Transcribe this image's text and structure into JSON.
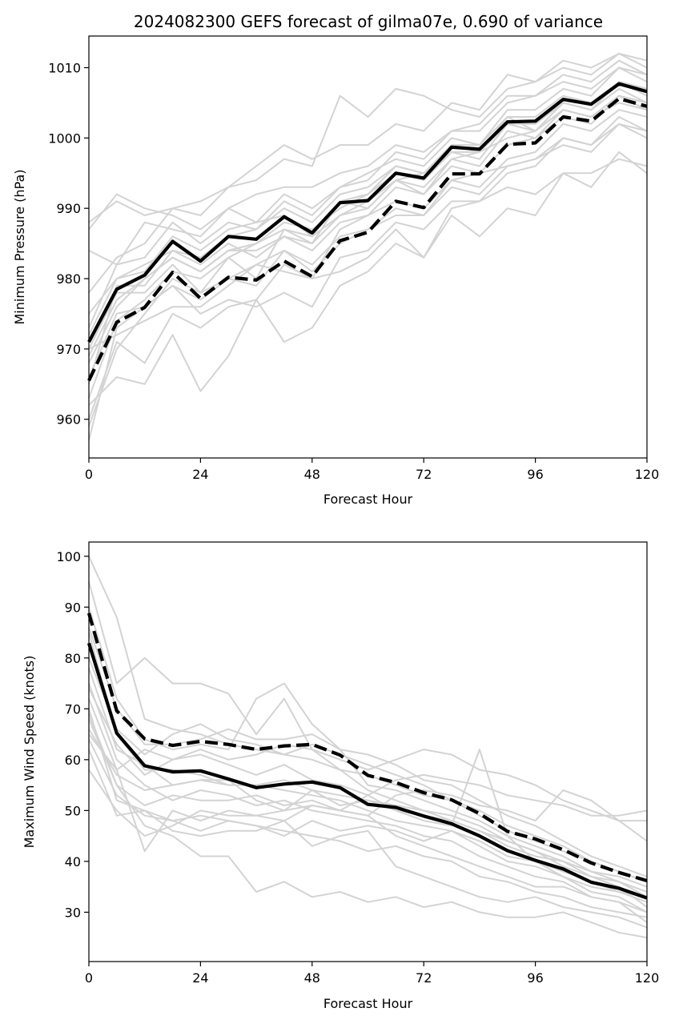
{
  "title": "2024082300 GEFS forecast of gilma07e, 0.690 of variance",
  "chart_data": [
    {
      "type": "line",
      "title": "2024082300 GEFS forecast of gilma07e, 0.690 of variance",
      "xlabel": "Forecast Hour",
      "ylabel": "Minimum Pressure (hPa)",
      "xlim": [
        0,
        120
      ],
      "ylim": [
        954.5,
        1014.5
      ],
      "xticks": [
        0,
        24,
        48,
        72,
        96,
        120
      ],
      "yticks": [
        960,
        970,
        980,
        990,
        1000,
        1010
      ],
      "x": [
        0,
        6,
        12,
        18,
        24,
        30,
        36,
        42,
        48,
        54,
        60,
        66,
        72,
        78,
        84,
        90,
        96,
        102,
        108,
        114,
        120
      ],
      "grid": false,
      "series": [
        {
          "style": "solid-black",
          "values": [
            971.0,
            978.5,
            980.5,
            985.3,
            982.5,
            986.0,
            985.6,
            988.8,
            986.5,
            990.8,
            991.1,
            995.0,
            994.3,
            998.7,
            998.4,
            1002.3,
            1002.4,
            1005.5,
            1004.8,
            1007.7,
            1006.6
          ]
        },
        {
          "style": "dashed-black",
          "values": [
            965.5,
            973.8,
            975.9,
            980.9,
            977.2,
            980.2,
            979.8,
            982.5,
            980.3,
            985.4,
            986.6,
            991.0,
            990.1,
            994.9,
            994.9,
            999.1,
            999.3,
            1003.0,
            1002.4,
            1005.6,
            1004.5
          ]
        },
        {
          "style": "ensemble-member",
          "values": [
            962,
            966,
            965,
            972,
            964,
            969,
            977,
            982,
            980,
            987,
            989,
            991,
            990,
            994,
            995,
            996,
            997,
            999,
            998,
            1002,
            1001
          ]
        },
        {
          "style": "ensemble-member",
          "values": [
            959,
            970,
            975,
            980,
            978,
            983,
            980,
            987,
            985,
            991,
            990,
            994,
            992,
            997,
            998,
            1003,
            1001,
            1005,
            1004,
            1008,
            1006
          ]
        },
        {
          "style": "ensemble-member",
          "values": [
            968,
            976,
            980,
            983,
            981,
            984,
            984,
            986,
            985,
            989,
            991,
            994,
            995,
            999,
            999,
            1004,
            1004,
            1007,
            1006,
            1010,
            1008
          ]
        },
        {
          "style": "ensemble-member",
          "values": [
            973,
            982,
            983,
            988,
            985,
            988,
            987,
            991,
            989,
            993,
            994,
            998,
            997,
            1001,
            1001,
            1005,
            1006,
            1009,
            1008,
            1011,
            1009
          ]
        },
        {
          "style": "ensemble-member",
          "values": [
            987,
            992,
            990,
            989,
            987,
            990,
            992,
            993,
            993,
            995,
            996,
            999,
            998,
            1001,
            1002,
            1006,
            1006,
            1008,
            1007,
            1010,
            1009
          ]
        },
        {
          "style": "ensemble-member",
          "values": [
            988,
            991,
            989,
            990,
            989,
            993,
            994,
            997,
            996,
            1006,
            1003,
            1007,
            1006,
            1004,
            1003,
            1007,
            1008,
            1011,
            1010,
            1012,
            1011
          ]
        },
        {
          "style": "ensemble-member",
          "values": [
            978,
            983,
            985,
            990,
            991,
            993,
            996,
            999,
            997,
            999,
            999,
            1002,
            1001,
            1005,
            1004,
            1009,
            1008,
            1010,
            1009,
            1012,
            1010
          ]
        },
        {
          "style": "ensemble-member",
          "values": [
            963,
            974,
            977,
            981,
            980,
            983,
            985,
            988,
            987,
            990,
            992,
            995,
            994,
            998,
            997,
            1002,
            1002,
            1005,
            1004,
            1007,
            1005
          ]
        },
        {
          "style": "ensemble-member",
          "values": [
            966,
            975,
            976,
            979,
            975,
            977,
            976,
            978,
            976,
            983,
            984,
            988,
            987,
            991,
            991,
            995,
            996,
            1000,
            999,
            1003,
            1001
          ]
        },
        {
          "style": "ensemble-member",
          "values": [
            970,
            972,
            974,
            976,
            976,
            979,
            982,
            981,
            980,
            981,
            983,
            987,
            983,
            990,
            991,
            993,
            992,
            995,
            995,
            997,
            996
          ]
        },
        {
          "style": "ensemble-member",
          "values": [
            960,
            971,
            968,
            975,
            973,
            976,
            977,
            971,
            973,
            979,
            981,
            985,
            983,
            989,
            986,
            990,
            989,
            995,
            993,
            998,
            995
          ]
        },
        {
          "style": "ensemble-member",
          "values": [
            975,
            980,
            981,
            986,
            984,
            987,
            988,
            989,
            986,
            991,
            992,
            996,
            995,
            999,
            998,
            1002,
            1001,
            1004,
            1003,
            1005,
            1004
          ]
        },
        {
          "style": "ensemble-member",
          "values": [
            984,
            982,
            988,
            987,
            986,
            990,
            988,
            992,
            990,
            993,
            995,
            997,
            996,
            1000,
            999,
            1003,
            1003,
            1006,
            1005,
            1008,
            1007
          ]
        },
        {
          "style": "ensemble-member",
          "values": [
            965,
            979,
            979,
            984,
            982,
            985,
            983,
            986,
            984,
            988,
            989,
            993,
            992,
            996,
            995,
            999,
            1000,
            1003,
            1002,
            1006,
            1004
          ]
        },
        {
          "style": "ensemble-member",
          "values": [
            970,
            978,
            978,
            982,
            978,
            980,
            979,
            984,
            982,
            986,
            987,
            990,
            989,
            993,
            992,
            996,
            997,
            1000,
            999,
            1002,
            1000
          ]
        },
        {
          "style": "ensemble-member",
          "values": [
            972,
            980,
            982,
            984,
            983,
            986,
            987,
            990,
            988,
            992,
            993,
            996,
            995,
            998,
            998,
            1000,
            1001,
            1004,
            1003,
            1006,
            1005
          ]
        },
        {
          "style": "ensemble-member",
          "values": [
            957,
            973,
            976,
            979,
            977,
            980,
            982,
            984,
            981,
            985,
            987,
            989,
            989,
            994,
            993,
            997,
            998,
            1002,
            1001,
            1004,
            1003
          ]
        },
        {
          "style": "ensemble-member",
          "values": [
            969,
            977,
            980,
            983,
            981,
            984,
            985,
            987,
            986,
            989,
            990,
            994,
            993,
            997,
            996,
            1001,
            1000,
            1004,
            1003,
            1006,
            1005
          ]
        }
      ]
    },
    {
      "type": "line",
      "title": "",
      "xlabel": "Forecast Hour",
      "ylabel": "Maximum Wind Speed (knots)",
      "xlim": [
        0,
        120
      ],
      "ylim": [
        20.3,
        102.8
      ],
      "xticks": [
        0,
        24,
        48,
        72,
        96,
        120
      ],
      "yticks": [
        30,
        40,
        50,
        60,
        70,
        80,
        90,
        100
      ],
      "x": [
        0,
        6,
        12,
        18,
        24,
        30,
        36,
        42,
        48,
        54,
        60,
        66,
        72,
        78,
        84,
        90,
        96,
        102,
        108,
        114,
        120
      ],
      "grid": false,
      "series": [
        {
          "style": "solid-black",
          "values": [
            82.9,
            65.2,
            58.8,
            57.6,
            57.8,
            56.2,
            54.5,
            55.2,
            55.6,
            54.5,
            51.2,
            50.6,
            48.9,
            47.4,
            45.0,
            42.1,
            40.2,
            38.5,
            35.9,
            34.7,
            32.8
          ]
        },
        {
          "style": "dashed-black",
          "values": [
            88.8,
            69.6,
            64.1,
            62.8,
            63.6,
            63.0,
            62.0,
            62.7,
            63.0,
            60.9,
            56.9,
            55.5,
            53.5,
            52.1,
            49.4,
            45.9,
            44.4,
            42.3,
            39.7,
            37.8,
            36.2
          ]
        },
        {
          "style": "ensemble-member",
          "values": [
            100,
            88,
            68,
            66,
            65,
            63,
            62,
            61,
            60,
            58,
            54,
            52,
            50,
            48,
            46,
            43,
            41,
            40,
            37,
            36,
            33
          ]
        },
        {
          "style": "ensemble-member",
          "values": [
            95,
            75,
            80,
            75,
            75,
            73,
            65,
            72,
            62,
            58,
            57,
            55,
            53,
            52,
            49,
            46,
            44,
            42,
            40,
            38,
            36
          ]
        },
        {
          "style": "ensemble-member",
          "values": [
            90,
            72,
            64,
            62,
            63,
            62,
            72,
            75,
            67,
            62,
            61,
            59,
            56,
            55,
            52,
            49,
            47,
            44,
            41,
            39,
            37
          ]
        },
        {
          "style": "ensemble-member",
          "values": [
            85,
            65,
            58,
            58,
            57,
            55,
            55,
            56,
            54,
            53,
            52,
            50,
            48,
            47,
            62,
            45,
            40,
            37,
            35,
            34,
            33
          ]
        },
        {
          "style": "ensemble-member",
          "values": [
            68,
            55,
            47,
            45,
            41,
            41,
            34,
            36,
            33,
            34,
            32,
            33,
            31,
            32,
            30,
            29,
            29,
            30,
            28,
            26,
            25
          ]
        },
        {
          "style": "ensemble-member",
          "values": [
            62,
            49,
            50,
            46,
            45,
            46,
            46,
            48,
            43,
            45,
            46,
            39,
            37,
            35,
            33,
            32,
            33,
            31,
            30,
            29,
            27
          ]
        },
        {
          "style": "ensemble-member",
          "values": [
            70,
            52,
            50,
            48,
            49,
            48,
            47,
            46,
            45,
            44,
            42,
            43,
            41,
            40,
            37,
            36,
            34,
            33,
            31,
            30,
            29
          ]
        },
        {
          "style": "ensemble-member",
          "values": [
            75,
            60,
            55,
            52,
            54,
            53,
            51,
            52,
            50,
            49,
            48,
            47,
            45,
            44,
            41,
            39,
            37,
            36,
            33,
            32,
            30
          ]
        },
        {
          "style": "ensemble-member",
          "values": [
            78,
            62,
            59,
            55,
            56,
            55,
            55,
            54,
            53,
            52,
            50,
            48,
            47,
            46,
            44,
            41,
            40,
            38,
            36,
            34,
            32
          ]
        },
        {
          "style": "ensemble-member",
          "values": [
            65,
            58,
            42,
            50,
            48,
            50,
            49,
            48,
            51,
            50,
            53,
            56,
            57,
            56,
            55,
            53,
            52,
            51,
            49,
            49,
            50
          ]
        },
        {
          "style": "ensemble-member",
          "values": [
            58,
            50,
            45,
            47,
            50,
            49,
            49,
            50,
            51,
            50,
            49,
            53,
            54,
            53,
            51,
            50,
            48,
            54,
            52,
            48,
            48
          ]
        },
        {
          "style": "ensemble-member",
          "values": [
            72,
            58,
            62,
            60,
            62,
            60,
            61,
            63,
            62,
            60,
            58,
            60,
            62,
            61,
            58,
            57,
            55,
            52,
            50,
            48,
            44
          ]
        },
        {
          "style": "ensemble-member",
          "values": [
            80,
            66,
            61,
            65,
            67,
            64,
            63,
            61,
            63,
            61,
            59,
            57,
            55,
            52,
            50,
            47,
            45,
            43,
            40,
            38,
            36
          ]
        },
        {
          "style": "ensemble-member",
          "values": [
            74,
            63,
            57,
            60,
            61,
            59,
            57,
            59,
            56,
            55,
            53,
            50,
            49,
            48,
            46,
            44,
            42,
            39,
            37,
            35,
            31
          ]
        },
        {
          "style": "ensemble-member",
          "values": [
            64,
            53,
            49,
            48,
            46,
            48,
            47,
            45,
            48,
            46,
            47,
            46,
            44,
            46,
            43,
            40,
            39,
            37,
            34,
            33,
            30
          ]
        },
        {
          "style": "ensemble-member",
          "values": [
            66,
            57,
            54,
            55,
            56,
            56,
            52,
            50,
            54,
            51,
            52,
            51,
            50,
            49,
            47,
            44,
            42,
            40,
            38,
            37,
            35
          ]
        },
        {
          "style": "ensemble-member",
          "values": [
            86,
            70,
            63,
            63,
            64,
            66,
            64,
            64,
            65,
            62,
            55,
            54,
            52,
            50,
            48,
            45,
            43,
            41,
            38,
            36,
            34
          ]
        },
        {
          "style": "ensemble-member",
          "values": [
            69,
            55,
            51,
            53,
            52,
            52,
            53,
            51,
            52,
            50,
            49,
            45,
            43,
            41,
            39,
            37,
            35,
            35,
            33,
            32,
            28
          ]
        }
      ]
    }
  ]
}
